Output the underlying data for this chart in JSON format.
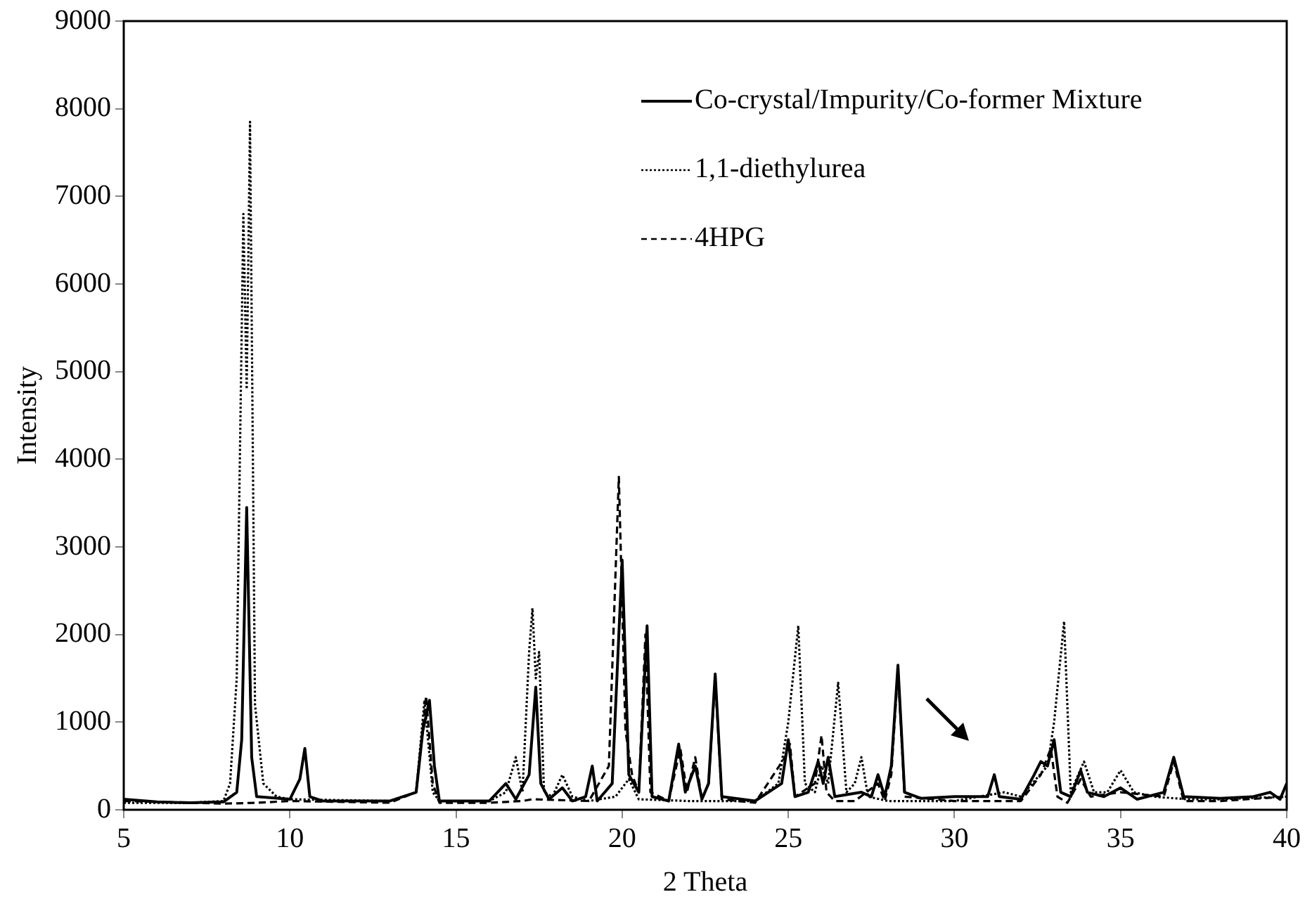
{
  "chart_data": {
    "type": "line",
    "xlabel": "2 Theta",
    "ylabel": "Intensity",
    "xlim": [
      5,
      40
    ],
    "xticks": [
      5,
      10,
      15,
      20,
      25,
      30,
      35,
      40
    ],
    "ylim": [
      0,
      9000
    ],
    "yticks": [
      0,
      1000,
      2000,
      3000,
      4000,
      5000,
      6000,
      7000,
      8000,
      9000
    ],
    "grid": false,
    "legend": "top right",
    "marker": "none",
    "series": [
      {
        "name": "Co-crystal/Impurity/Co-former Mixture",
        "color": "#000000",
        "line_style": "solid",
        "x": [
          5,
          6,
          7,
          8,
          8.4,
          8.55,
          8.7,
          8.85,
          9.0,
          10.0,
          10.3,
          10.45,
          10.6,
          11,
          13,
          13.8,
          14.0,
          14.2,
          14.35,
          14.5,
          16,
          16.5,
          16.8,
          17.2,
          17.4,
          17.55,
          17.8,
          18.2,
          18.5,
          18.9,
          19.1,
          19.25,
          19.7,
          20.0,
          20.2,
          20.5,
          20.75,
          20.9,
          21.4,
          21.7,
          21.9,
          22.2,
          22.4,
          22.6,
          22.8,
          23.0,
          24,
          24.8,
          25.0,
          25.2,
          25.6,
          25.9,
          26.05,
          26.2,
          26.4,
          27.2,
          27.5,
          27.7,
          27.9,
          28.1,
          28.3,
          28.5,
          29,
          30,
          31,
          31.2,
          31.35,
          32,
          32.4,
          32.6,
          32.8,
          33.0,
          33.2,
          33.5,
          33.8,
          34.0,
          34.5,
          35.0,
          35.5,
          36.3,
          36.6,
          36.9,
          38,
          39,
          39.5,
          39.8,
          40
        ],
        "values": [
          120,
          90,
          80,
          90,
          200,
          800,
          3450,
          600,
          150,
          120,
          350,
          700,
          150,
          100,
          100,
          200,
          900,
          1250,
          500,
          100,
          100,
          300,
          120,
          400,
          1400,
          300,
          120,
          250,
          100,
          150,
          500,
          100,
          300,
          2850,
          400,
          200,
          2100,
          150,
          100,
          750,
          200,
          500,
          120,
          300,
          1550,
          150,
          100,
          300,
          800,
          150,
          200,
          550,
          300,
          600,
          150,
          200,
          150,
          400,
          150,
          500,
          1650,
          200,
          130,
          150,
          150,
          400,
          150,
          120,
          400,
          550,
          500,
          800,
          200,
          150,
          450,
          200,
          150,
          250,
          120,
          200,
          600,
          150,
          130,
          150,
          200,
          120,
          300
        ]
      },
      {
        "name": "1,1-diethylurea",
        "color": "#000000",
        "line_style": "dotted",
        "x": [
          5,
          7,
          8,
          8.2,
          8.4,
          8.6,
          8.7,
          8.8,
          8.95,
          9.2,
          9.6,
          10,
          13,
          13.8,
          14.05,
          14.3,
          14.5,
          16,
          16.5,
          16.8,
          17.0,
          17.2,
          17.3,
          17.4,
          17.5,
          17.65,
          17.9,
          18.2,
          18.5,
          19,
          19.8,
          20.2,
          20.5,
          22,
          24,
          24.7,
          25.0,
          25.3,
          25.5,
          25.8,
          26.0,
          26.2,
          26.5,
          26.75,
          27.0,
          27.2,
          27.4,
          28,
          30,
          31.5,
          32,
          32.8,
          33.0,
          33.3,
          33.5,
          33.9,
          34.2,
          34.6,
          35.0,
          35.4,
          36,
          37,
          38,
          40
        ],
        "values": [
          80,
          80,
          100,
          300,
          1500,
          6800,
          4800,
          7850,
          1200,
          300,
          150,
          120,
          100,
          200,
          1250,
          200,
          100,
          100,
          200,
          600,
          200,
          1800,
          2300,
          1500,
          1800,
          200,
          150,
          400,
          150,
          100,
          150,
          350,
          120,
          100,
          100,
          300,
          1000,
          2100,
          300,
          200,
          500,
          300,
          1450,
          200,
          300,
          600,
          150,
          100,
          100,
          200,
          150,
          500,
          1000,
          2150,
          200,
          550,
          200,
          200,
          450,
          200,
          150,
          120,
          120,
          150
        ]
      },
      {
        "name": "4HPG",
        "color": "#000000",
        "line_style": "dashed",
        "x": [
          5,
          7,
          8,
          9,
          10,
          13,
          13.8,
          14.1,
          14.3,
          14.5,
          16,
          17,
          17.3,
          19,
          19.6,
          19.9,
          20.1,
          20.3,
          20.5,
          20.7,
          20.85,
          21.4,
          21.75,
          21.95,
          22.2,
          22.4,
          22.6,
          22.8,
          23.0,
          24,
          24.9,
          25.05,
          25.2,
          25.8,
          26.0,
          26.15,
          26.4,
          27,
          27.7,
          27.9,
          28.1,
          28.3,
          28.5,
          30,
          32,
          32.6,
          32.9,
          33.1,
          33.4,
          33.8,
          34.1,
          35,
          36.3,
          36.6,
          36.9,
          38,
          40
        ],
        "values": [
          100,
          80,
          70,
          80,
          100,
          80,
          200,
          1300,
          300,
          80,
          80,
          100,
          120,
          100,
          500,
          3800,
          900,
          400,
          200,
          2000,
          200,
          100,
          700,
          200,
          600,
          120,
          300,
          1500,
          120,
          80,
          600,
          750,
          150,
          300,
          850,
          200,
          100,
          100,
          300,
          100,
          400,
          1600,
          150,
          100,
          100,
          400,
          700,
          150,
          80,
          350,
          150,
          200,
          150,
          550,
          100,
          100,
          150
        ]
      }
    ]
  }
}
